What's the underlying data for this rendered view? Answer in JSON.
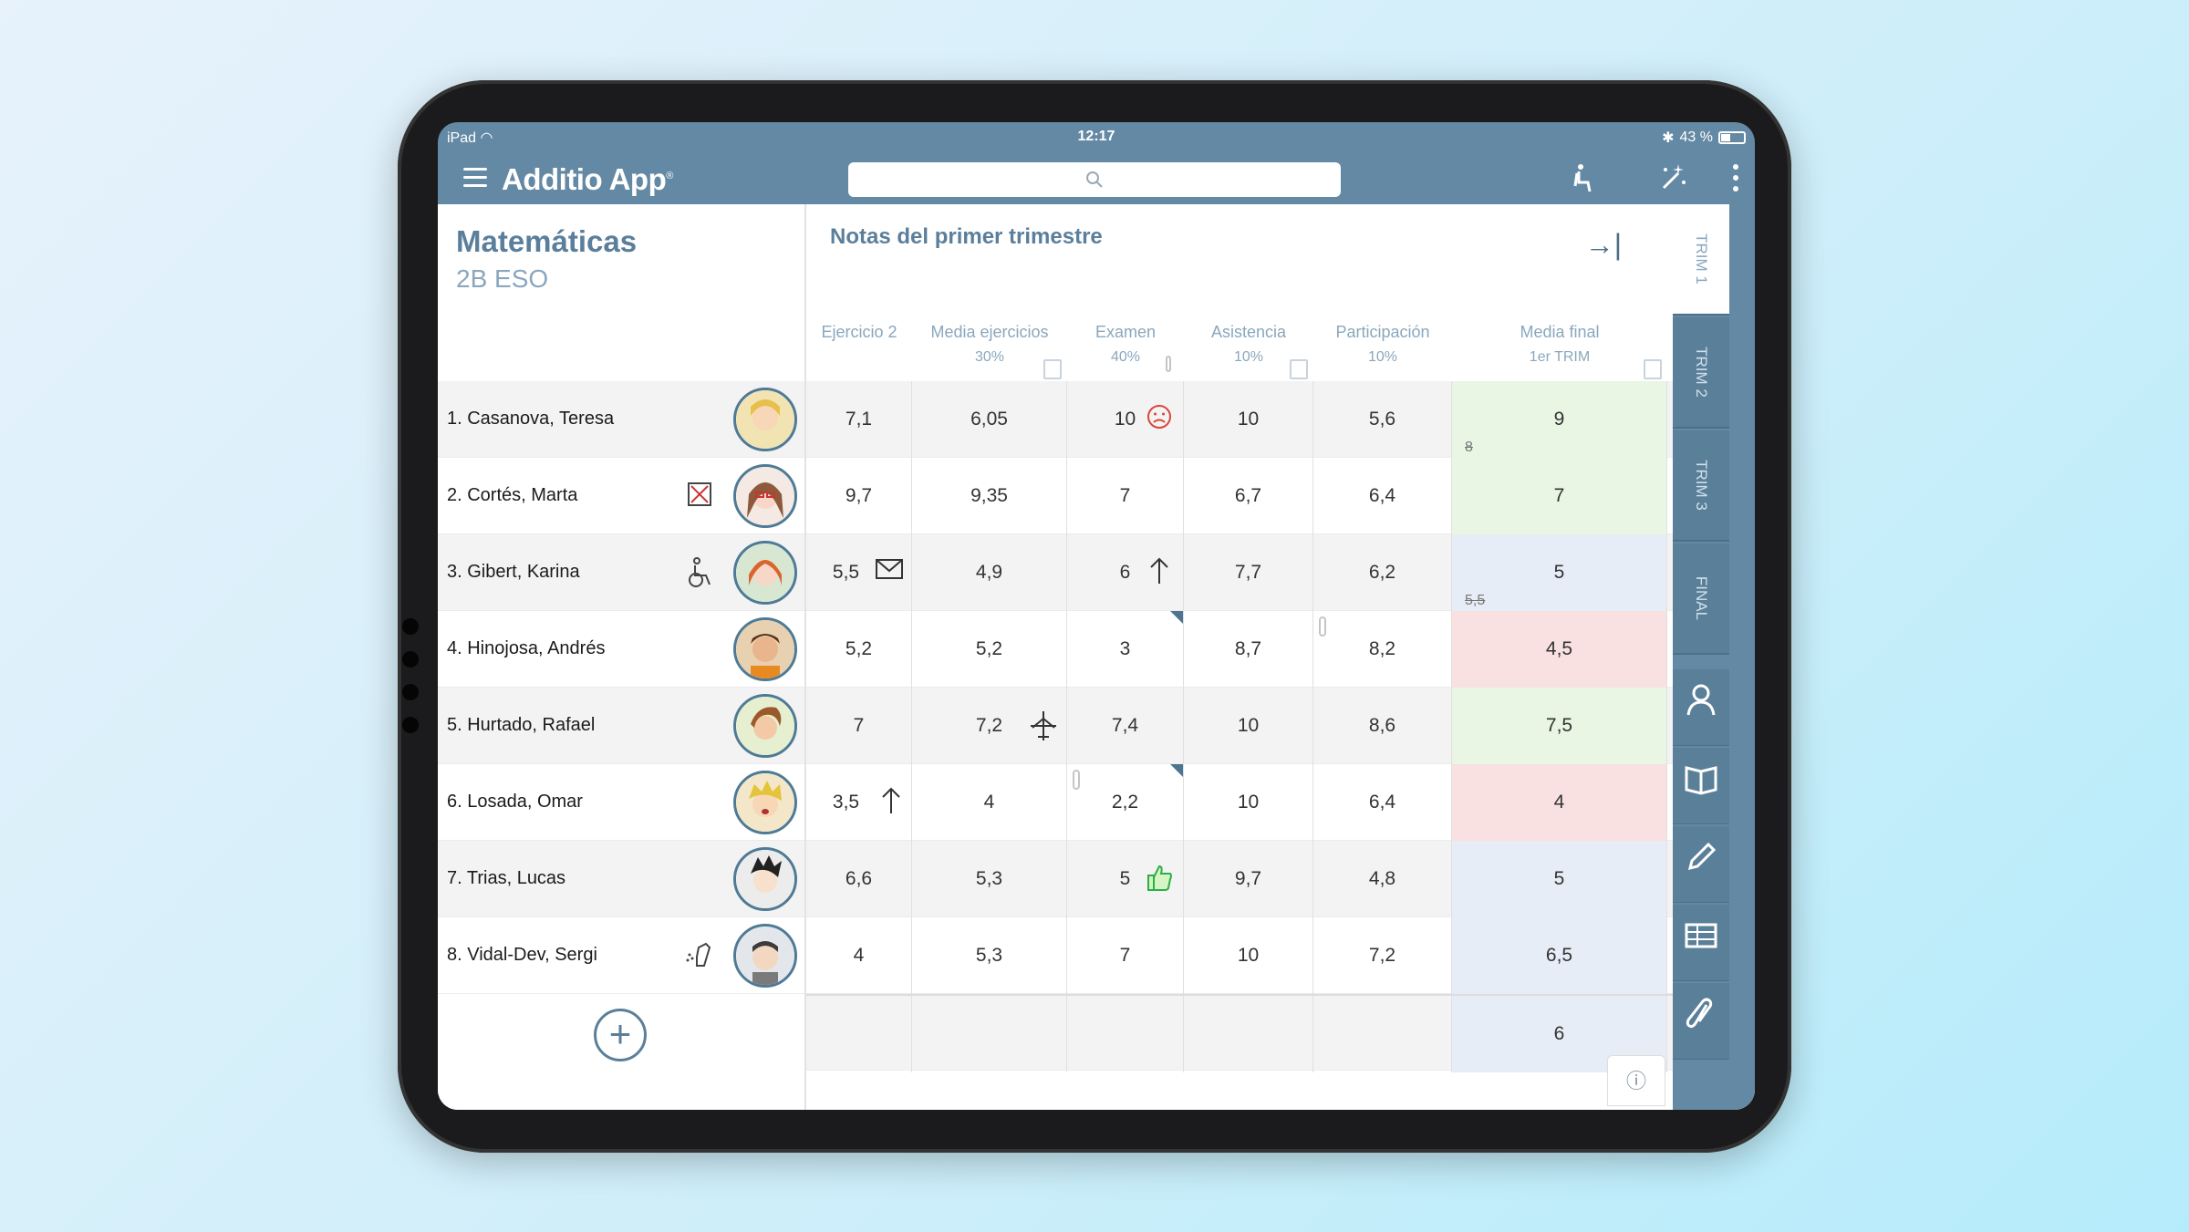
{
  "status_bar": {
    "device": "iPad",
    "time": "12:17",
    "battery": "43 %"
  },
  "app": {
    "title": "Additio App",
    "registered": "®"
  },
  "subject": {
    "name": "Matemáticas",
    "group": "2B ESO"
  },
  "grid": {
    "title": "Notas del primer trimestre",
    "columns": [
      {
        "label": "Ejercicio 2",
        "weight": ""
      },
      {
        "label": "Media ejercicios",
        "weight": "30%"
      },
      {
        "label": "Examen",
        "weight": "40%"
      },
      {
        "label": "Asistencia",
        "weight": "10%"
      },
      {
        "label": "Participación",
        "weight": "10%"
      },
      {
        "label": "Media final",
        "weight": "1er TRIM"
      }
    ],
    "rows": [
      {
        "student": "1. Casanova, Teresa",
        "values": [
          "7,1",
          "6,05",
          "10",
          "10",
          "5,6",
          "9"
        ],
        "final_prev": "8",
        "final_color": "green"
      },
      {
        "student": "2. Cortés, Marta",
        "values": [
          "9,7",
          "9,35",
          "7",
          "6,7",
          "6,4",
          "7"
        ],
        "final_prev": "",
        "final_color": "green"
      },
      {
        "student": "3. Gibert, Karina",
        "values": [
          "5,5",
          "4,9",
          "6",
          "7,7",
          "6,2",
          "5"
        ],
        "final_prev": "5,5",
        "final_color": "blue"
      },
      {
        "student": "4. Hinojosa, Andrés",
        "values": [
          "5,2",
          "5,2",
          "3",
          "8,7",
          "8,2",
          "4,5"
        ],
        "final_prev": "",
        "final_color": "red"
      },
      {
        "student": "5. Hurtado, Rafael",
        "values": [
          "7",
          "7,2",
          "7,4",
          "10",
          "8,6",
          "7,5"
        ],
        "final_prev": "",
        "final_color": "green"
      },
      {
        "student": "6. Losada, Omar",
        "values": [
          "3,5",
          "4",
          "2,2",
          "10",
          "6,4",
          "4"
        ],
        "final_prev": "",
        "final_color": "red"
      },
      {
        "student": "7. Trias, Lucas",
        "values": [
          "6,6",
          "5,3",
          "5",
          "9,7",
          "4,8",
          "5"
        ],
        "final_prev": "",
        "final_color": "blue"
      },
      {
        "student": "8. Vidal-Dev, Sergi",
        "values": [
          "4",
          "5,3",
          "7",
          "10",
          "7,2",
          "6,5"
        ],
        "final_prev": "",
        "final_color": "blue"
      }
    ],
    "summary_final": "6"
  },
  "tabs": [
    "TRIM 1",
    "TRIM 2",
    "TRIM 3",
    "FINAL"
  ],
  "icons": {
    "menu": "hamburger-icon",
    "search": "search-icon",
    "seat": "seat-icon",
    "magic": "magic-wand-icon",
    "more": "kebab-icon",
    "sad": "sad-face-icon",
    "envelope": "envelope-icon",
    "arrow_up": "arrow-up-icon",
    "airplane": "airplane-icon",
    "thumbs_up": "thumbs-up-icon",
    "collapse": "collapse-right-icon",
    "info": "info-icon"
  },
  "colors": {
    "header": "#6489a4",
    "accent": "#5b7f9b",
    "green": "#e8f6e3",
    "red": "#f9e1e1",
    "blue": "#e7edf6"
  }
}
